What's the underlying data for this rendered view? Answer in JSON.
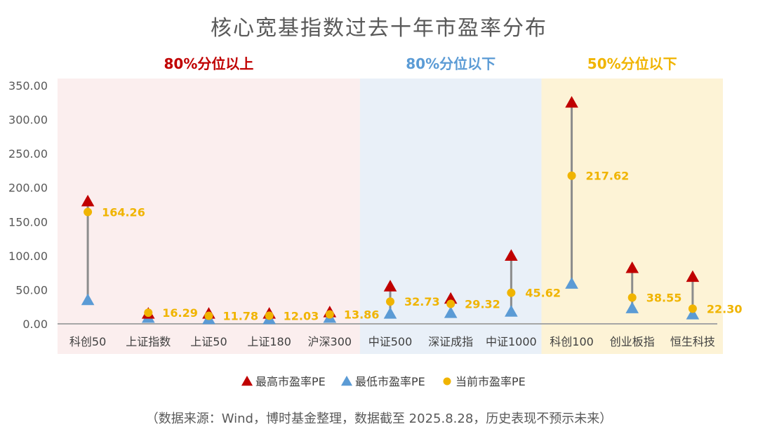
{
  "chart_data": {
    "type": "scatter",
    "title": "核心宽基指数过去十年市盈率分布",
    "categories": [
      "科创50",
      "上证指数",
      "上证50",
      "上证180",
      "沪深300",
      "中证500",
      "深证成指",
      "中证1000",
      "科创100",
      "创业板指",
      "恒生科技"
    ],
    "series": [
      {
        "name": "最高市盈率PE",
        "marker": "triangle",
        "color": "#c00000",
        "values": [
          180,
          15,
          15,
          15,
          17,
          55,
          37,
          100,
          325,
          82,
          69
        ]
      },
      {
        "name": "最低市盈率PE",
        "marker": "triangle",
        "color": "#5b9bd5",
        "values": [
          35,
          9,
          7,
          7,
          9,
          15,
          16,
          18,
          59,
          23,
          14
        ]
      },
      {
        "name": "当前市盈率PE",
        "marker": "circle",
        "color": "#f0b400",
        "values": [
          164.26,
          16.29,
          11.78,
          12.03,
          13.86,
          32.73,
          29.32,
          45.62,
          217.62,
          38.55,
          22.3
        ]
      }
    ],
    "data_labels": [
      "164.26",
      "16.29",
      "11.78",
      "12.03",
      "13.86",
      "32.73",
      "29.32",
      "45.62",
      "217.62",
      "38.55",
      "22.30"
    ],
    "ylim": [
      0,
      350
    ],
    "yticks": [
      "0.00",
      "50.00",
      "100.00",
      "150.00",
      "200.00",
      "250.00",
      "300.00",
      "350.00"
    ],
    "grid": false,
    "legend_position": "bottom",
    "zones": [
      {
        "label": "80%分位以上",
        "categories": [
          "科创50",
          "上证指数",
          "上证50",
          "上证180",
          "沪深300"
        ],
        "fill": "#fbeeee",
        "label_color": "#c00000"
      },
      {
        "label": "80%分位以下",
        "categories": [
          "中证500",
          "深证成指",
          "中证1000"
        ],
        "fill": "#e9f0f8",
        "label_color": "#5b9bd5"
      },
      {
        "label": "50%分位以下",
        "categories": [
          "科创100",
          "创业板指",
          "恒生科技"
        ],
        "fill": "#fdf3d6",
        "label_color": "#f0b400"
      }
    ],
    "source_note": "（数据来源：Wind，博时基金整理，数据截至 2025.8.28，历史表现不预示未来）"
  }
}
